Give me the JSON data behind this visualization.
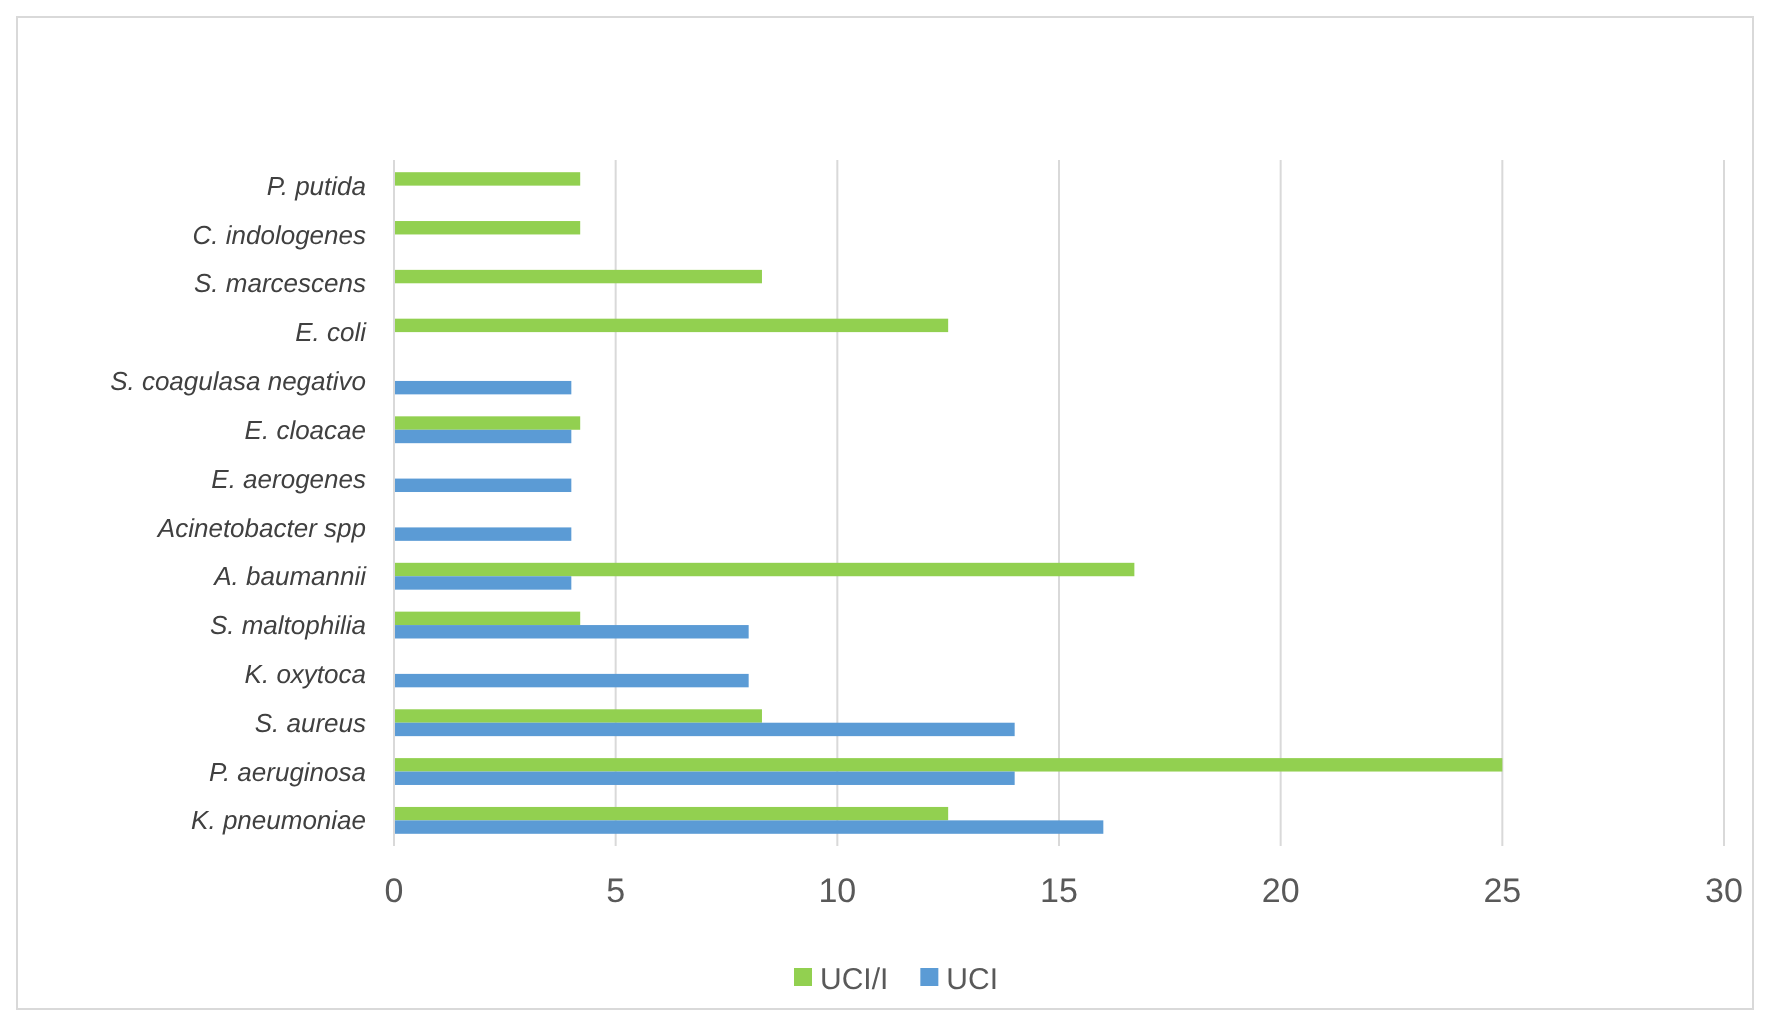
{
  "chart_data": {
    "type": "bar",
    "orientation": "horizontal",
    "categories": [
      "P. putida",
      "C. indologenes",
      "S. marcescens",
      "E. coli",
      "S. coagulasa negativo",
      "E. cloacae",
      "E. aerogenes",
      "Acinetobacter spp",
      "A. baumannii",
      "S. maltophilia",
      "K. oxytoca",
      "S. aureus",
      "P. aeruginosa",
      "K. pneumoniae"
    ],
    "series": [
      {
        "name": "UCI/I",
        "color": "#92d050",
        "values": [
          4.2,
          4.2,
          8.3,
          12.5,
          null,
          4.2,
          null,
          null,
          16.7,
          4.2,
          null,
          8.3,
          25,
          12.5
        ]
      },
      {
        "name": "UCI",
        "color": "#5b9bd5",
        "values": [
          null,
          null,
          null,
          null,
          4,
          4,
          4,
          4,
          4,
          8,
          8,
          14,
          14,
          16
        ]
      }
    ],
    "xlim": [
      0,
      30
    ],
    "xticks": [
      0,
      5,
      10,
      15,
      20,
      25,
      30
    ],
    "grid": "x",
    "legend": "bottom"
  }
}
